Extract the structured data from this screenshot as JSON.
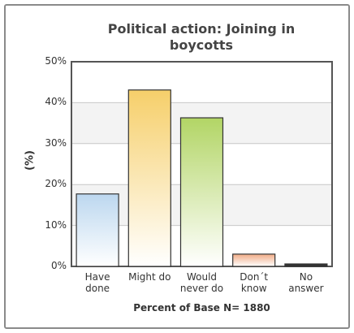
{
  "chart_data": {
    "type": "bar",
    "title": "Political action: Joining in boycotts",
    "y_label": "(%)",
    "x_label": "Percent of Base N= 1880",
    "categories": [
      "Have done",
      "Might do",
      "Would never do",
      "Don´t know",
      "No answer"
    ],
    "values": [
      17.7,
      43.1,
      36.3,
      3.0,
      0.6
    ],
    "colors": [
      "#bcd7ef",
      "#f6cf6a",
      "#b2d565",
      "#f0ab86",
      "#333333"
    ],
    "ylim": [
      0,
      50
    ],
    "yticks": [
      {
        "value": 0,
        "label": "0%"
      },
      {
        "value": 10,
        "label": "10%"
      },
      {
        "value": 20,
        "label": "20%"
      },
      {
        "value": 30,
        "label": "30%"
      },
      {
        "value": 40,
        "label": "40%"
      },
      {
        "value": 50,
        "label": "50%"
      }
    ],
    "grid": true
  }
}
